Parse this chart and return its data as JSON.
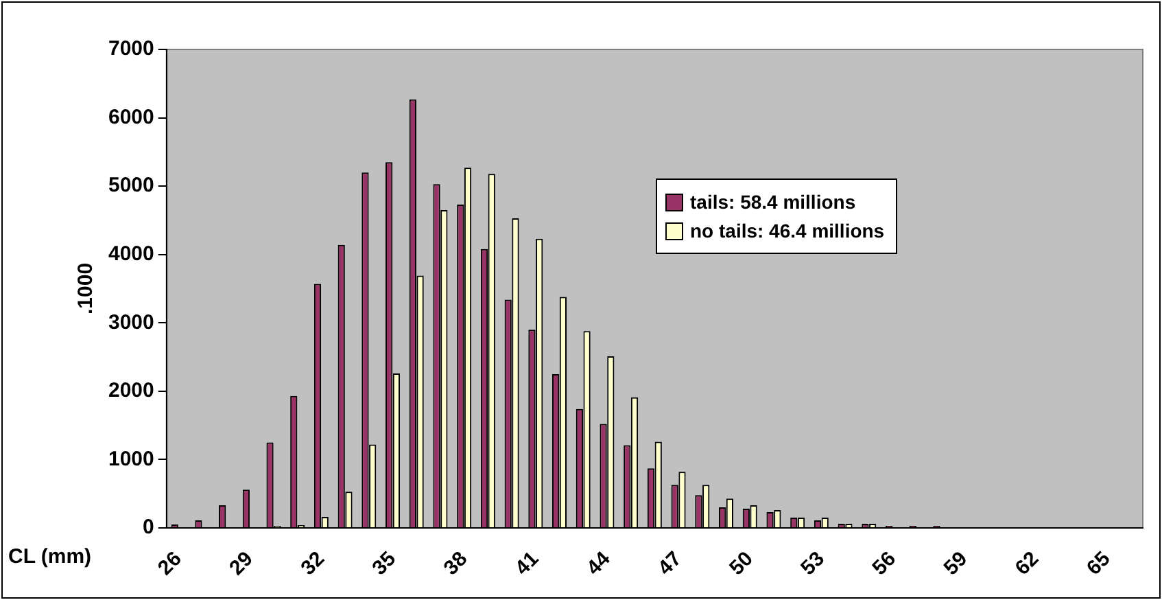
{
  "chart_data": {
    "type": "bar",
    "xlabel": "CL (mm)",
    "ylabel": ".1000",
    "categories": [
      "26",
      null,
      null,
      "29",
      null,
      null,
      "32",
      null,
      null,
      "35",
      null,
      null,
      "38",
      null,
      null,
      "41",
      null,
      null,
      "44",
      null,
      null,
      "47",
      null,
      null,
      "50",
      null,
      null,
      "53",
      null,
      null,
      "56",
      null,
      null,
      "59",
      null,
      null,
      "62",
      null,
      null,
      "65",
      null
    ],
    "series": [
      {
        "name": "tails: 58.4 millions",
        "color": "#993366",
        "values": [
          50,
          110,
          330,
          560,
          1250,
          1930,
          3570,
          4140,
          5200,
          5350,
          6270,
          5030,
          4730,
          4080,
          3340,
          2900,
          2250,
          1740,
          1520,
          1210,
          870,
          630,
          480,
          300,
          280,
          230,
          150,
          110,
          60,
          60,
          30,
          30,
          30,
          0,
          0,
          0,
          0,
          0,
          0,
          0,
          0
        ]
      },
      {
        "name": "no tails: 46.4 millions",
        "color": "#ffffcc",
        "values": [
          0,
          0,
          0,
          null,
          30,
          40,
          160,
          530,
          1220,
          2260,
          3690,
          4650,
          5270,
          5180,
          4530,
          4230,
          3380,
          2880,
          2510,
          1910,
          1260,
          820,
          630,
          430,
          330,
          260,
          150,
          150,
          60,
          60,
          null,
          null,
          null,
          0,
          0,
          0,
          0,
          0,
          0,
          0,
          0
        ]
      }
    ],
    "ylim": [
      0,
      7000
    ],
    "yticks": [
      0,
      1000,
      2000,
      3000,
      4000,
      5000,
      6000,
      7000
    ],
    "grid": false,
    "legend": "top right"
  }
}
